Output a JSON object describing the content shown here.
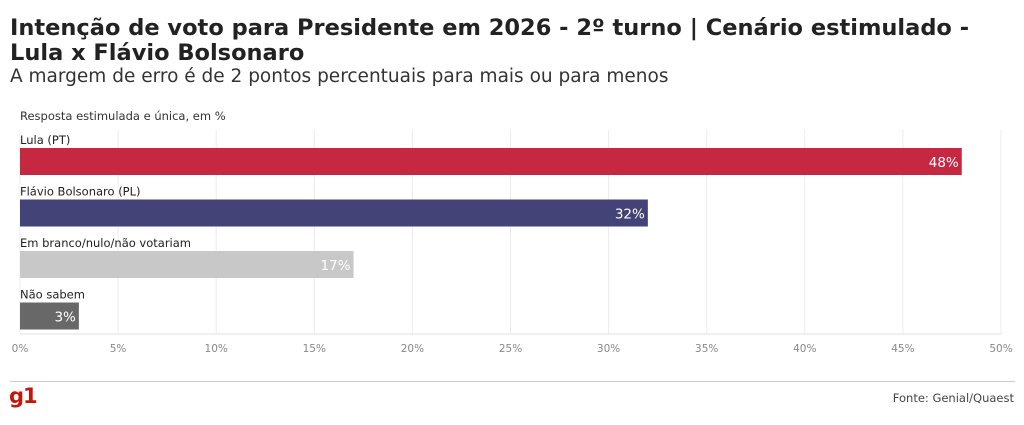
{
  "header": {
    "title": "Intenção de voto para Presidente em 2026 - 2º turno | Cenário estimulado - Lula x Flávio Bolsonaro",
    "subtitle": "A margem de erro é de 2 pontos percentuais para mais ou para menos",
    "note": "Resposta estimulada e única, em %"
  },
  "footer": {
    "logo": "g1",
    "source": "Fonte: Genial/Quaest"
  },
  "chart_data": {
    "type": "bar",
    "orientation": "horizontal",
    "categories": [
      "Lula (PT)",
      "Flávio Bolsonaro (PL)",
      "Em branco/nulo/não votariam",
      "Não sabem"
    ],
    "values": [
      48,
      32,
      17,
      3
    ],
    "value_labels": [
      "48%",
      "32%",
      "17%",
      "3%"
    ],
    "colors": [
      "#c62841",
      "#434378",
      "#c8c8c8",
      "#686868"
    ],
    "xlim": [
      0,
      50
    ],
    "xticks": [
      0,
      5,
      10,
      15,
      20,
      25,
      30,
      35,
      40,
      45,
      50
    ],
    "xtick_labels": [
      "0%",
      "5%",
      "10%",
      "15%",
      "20%",
      "25%",
      "30%",
      "35%",
      "40%",
      "45%",
      "50%"
    ],
    "grid": true
  }
}
